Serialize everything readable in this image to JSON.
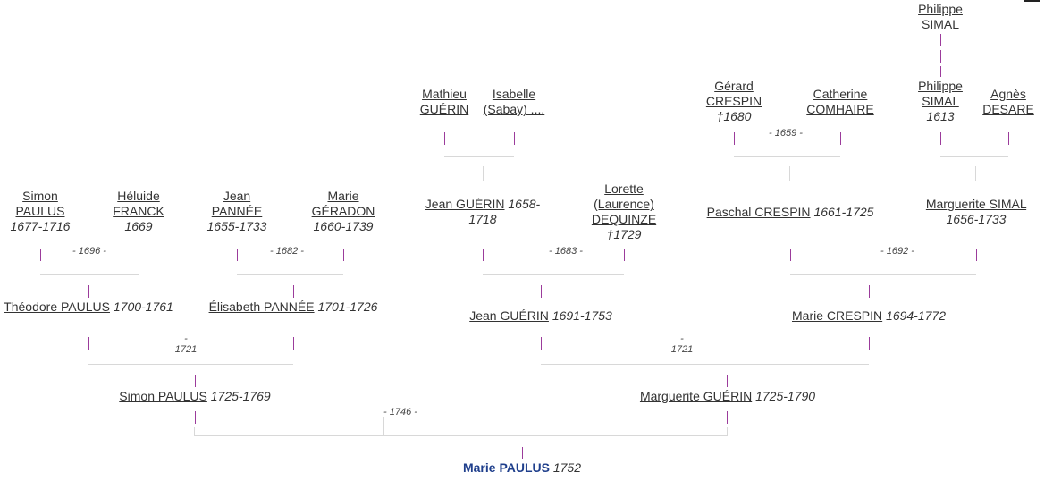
{
  "people": {
    "marie_paulus": {
      "name": "Marie PAULUS",
      "dates": "1752"
    },
    "simon_paulus_1725": {
      "name": "Simon PAULUS",
      "dates": "1725-1769"
    },
    "marguerite_guerin_1725": {
      "name": "Marguerite GUÉRIN",
      "dates": "1725-1790"
    },
    "theodore_paulus": {
      "name": "Théodore PAULUS",
      "dates": "1700-1761"
    },
    "elisabeth_pannee": {
      "name": "Élisabeth PANNÉE",
      "dates": "1701-1726"
    },
    "jean_guerin_1691": {
      "name": "Jean GUÉRIN",
      "dates": "1691-1753"
    },
    "marie_crespin": {
      "name": "Marie CRESPIN",
      "dates": "1694-1772"
    },
    "simon_paulus_1677": {
      "name": "Simon PAULUS",
      "dates": "1677-1716"
    },
    "heluide_franck": {
      "name": "Héluide FRANCK",
      "dates": "1669"
    },
    "jean_pannee": {
      "name": "Jean PANNÉE",
      "dates": "1655-1733"
    },
    "marie_geradon": {
      "name": "Marie GÉRADON",
      "dates": "1660-1739"
    },
    "jean_guerin_1658": {
      "name": "Jean GUÉRIN",
      "dates": "1658-1718"
    },
    "lorette_dequinze": {
      "name": "Lorette (Laurence) DEQUINZE",
      "dates": "†1729"
    },
    "paschal_crespin": {
      "name": "Paschal CRESPIN",
      "dates": "1661-1725"
    },
    "marguerite_simal": {
      "name": "Marguerite SIMAL",
      "dates": "1656-1733"
    },
    "mathieu_guerin": {
      "name": "Mathieu GUÉRIN",
      "dates": ""
    },
    "isabelle_sabay": {
      "name": "Isabelle (Sabay) ....",
      "dates": ""
    },
    "gerard_crespin": {
      "name": "Gérard CRESPIN",
      "dates": "†1680"
    },
    "catherine_comhaire": {
      "name": "Catherine COMHAIRE",
      "dates": ""
    },
    "philippe_simal_1613": {
      "name": "Philippe SIMAL",
      "dates": "1613"
    },
    "agnes_desare": {
      "name": "Agnès DESARE",
      "dates": ""
    },
    "philippe_simal_top": {
      "name": "Philippe SIMAL",
      "dates": ""
    }
  },
  "marriages": {
    "m1746": "- 1746 -",
    "m1721a": "- 1721",
    "m1721b": "- 1721",
    "m1696": "- 1696 -",
    "m1682": "- 1682 -",
    "m1683": "- 1683 -",
    "m1692": "- 1692 -",
    "m1659": "- 1659 -"
  },
  "colors": {
    "root_name": "#1f3f8c",
    "link_line": "#9b3b9b",
    "grid_line": "#d8d8d8",
    "text": "#333333"
  }
}
